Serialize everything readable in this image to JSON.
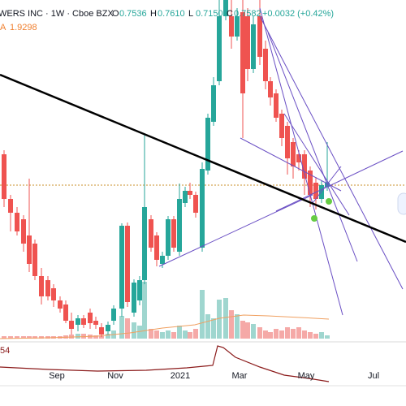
{
  "header": {
    "symbol": "WERS INC · 1W · Cboe BZX",
    "ohlc": [
      {
        "label": "O",
        "value": "0.7536"
      },
      {
        "label": "H",
        "value": "0.7610"
      },
      {
        "label": "L",
        "value": "0.7150"
      },
      {
        "label": "C",
        "value": "0.7582"
      }
    ],
    "change": "+0.0032 (+0.42%)"
  },
  "volume_ma": {
    "label": "A",
    "value": "1.9298"
  },
  "lower_pane": {
    "value": "54"
  },
  "x_axis": {
    "labels": [
      "Sep",
      "Nov",
      "2021",
      "Mar",
      "May",
      "Jul"
    ]
  }
}
